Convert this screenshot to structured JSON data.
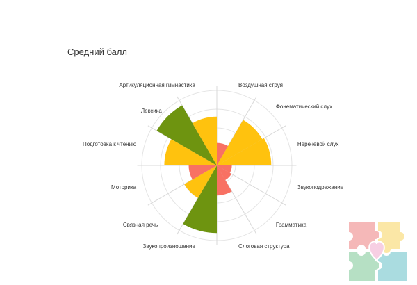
{
  "chart_data": {
    "type": "polar-area",
    "title": "Средний балл",
    "categories": [
      "Воздушная струя",
      "Фонематический слух",
      "Неречевой слух",
      "Звукоподражание",
      "Грамматика",
      "Слоговая структура",
      "Звукопроизношение",
      "Связная речь",
      "Моторика",
      "Подготовка к чтению",
      "Лексика",
      "Артикуляционная гимнастика"
    ],
    "values": [
      1.2,
      2.8,
      2.9,
      0.8,
      0.9,
      1.6,
      3.6,
      2.0,
      1.5,
      2.8,
      3.7,
      2.6
    ],
    "color_levels": [
      {
        "max": 1.7,
        "color": "#f87163"
      },
      {
        "max": 3.0,
        "color": "#ffc20e"
      },
      {
        "max": 99,
        "color": "#6e9410"
      }
    ],
    "rmax": 4,
    "grid_rings": [
      1,
      2,
      3,
      4
    ],
    "grid_color": "#e4e4e4"
  }
}
